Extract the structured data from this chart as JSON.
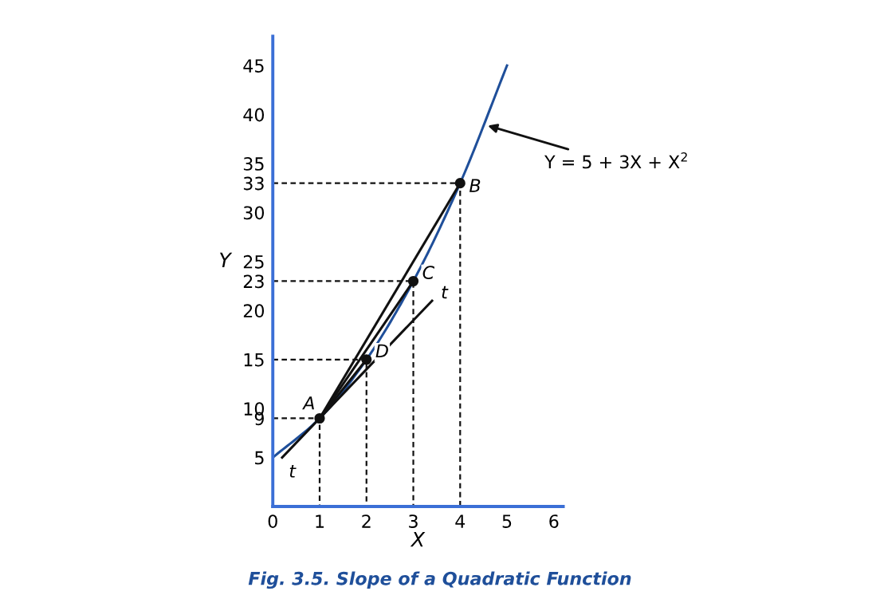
{
  "chart_data": {
    "type": "line",
    "xlabel": "X",
    "ylabel": "Y",
    "xlim": [
      0,
      6.2
    ],
    "ylim": [
      0,
      48
    ],
    "xticks": [
      0,
      1,
      2,
      3,
      4,
      5,
      6
    ],
    "yticks": [
      5,
      9,
      10,
      15,
      20,
      23,
      25,
      30,
      33,
      35,
      40,
      45
    ],
    "grid": false,
    "legend": false,
    "marker": "none",
    "series": [
      {
        "color": "#1f4f9a",
        "x": [
          0,
          1,
          2,
          3,
          4,
          5
        ],
        "values": [
          5,
          9,
          15,
          23,
          33,
          45
        ]
      },
      {
        "color": "#111111",
        "x": [
          1,
          4
        ],
        "values": [
          9,
          33
        ]
      },
      {
        "color": "#111111",
        "x": [
          1,
          3
        ],
        "values": [
          9,
          23
        ]
      },
      {
        "color": "#111111",
        "x": [
          1,
          2
        ],
        "values": [
          9,
          15
        ]
      },
      {
        "color": "#111111",
        "x": [
          0.2,
          3.4
        ],
        "values": [
          5,
          21
        ]
      },
      {
        "color": "#111111",
        "x": [
          0,
          1,
          1
        ],
        "values": [
          9,
          9,
          0
        ],
        "line_style": "dashed"
      },
      {
        "color": "#111111",
        "x": [
          0,
          2,
          2
        ],
        "values": [
          15,
          15,
          0
        ],
        "line_style": "dashed"
      },
      {
        "color": "#111111",
        "x": [
          0,
          3,
          3
        ],
        "values": [
          23,
          23,
          0
        ],
        "line_style": "dashed"
      },
      {
        "color": "#111111",
        "x": [
          0,
          4,
          4
        ],
        "values": [
          33,
          33,
          0
        ],
        "line_style": "dashed"
      },
      {
        "type": "scatter",
        "color": "#111111",
        "marker": "circle",
        "x": [
          1,
          2,
          3,
          4
        ],
        "values": [
          9,
          15,
          23,
          33
        ]
      }
    ],
    "annotations": [
      {
        "text": "A",
        "x": 1,
        "y": 9
      },
      {
        "text": "D",
        "x": 2,
        "y": 15
      },
      {
        "text": "C",
        "x": 3,
        "y": 23
      },
      {
        "text": "B",
        "x": 4,
        "y": 33
      },
      {
        "text": "t",
        "x": 0.2,
        "y": 5
      },
      {
        "text": "t",
        "x": 3.4,
        "y": 21
      },
      {
        "text": "Y = 5 + 3X + X$^{2}$",
        "x": 4.5,
        "y": 39
      },
      "Fig. 3.5. Slope of a Quadratic Function"
    ]
  }
}
